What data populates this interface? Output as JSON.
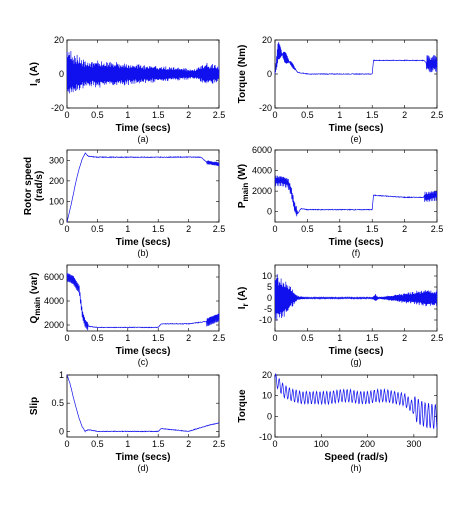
{
  "chart_data": [
    {
      "id": "a",
      "type": "line",
      "caption": "(a)",
      "ylabel": "I",
      "ylabel_sub": "a",
      "ylabel_unit": " (A)",
      "xlabel": "Time (secs)",
      "xlim": [
        0,
        2.5
      ],
      "ylim": [
        -20,
        20
      ],
      "xticks": [
        0,
        0.5,
        1,
        1.5,
        2,
        2.5
      ],
      "xtick_labels": [
        "0",
        "0.5",
        "1",
        "1.5",
        "2",
        "2.5"
      ],
      "yticks": [
        -20,
        0,
        20
      ],
      "ytick_labels": [
        "-20",
        "0",
        "20"
      ],
      "series": [
        {
          "x": [
            0,
            0.03,
            0.06,
            0.1,
            0.15,
            0.25,
            0.4,
            0.6,
            0.9,
            1.2,
            1.5,
            1.8,
            2.1,
            2.3,
            2.5
          ],
          "amplitude": [
            16,
            15,
            14,
            13,
            12,
            9,
            8,
            8,
            7,
            6,
            5,
            4,
            3,
            7,
            5
          ]
        }
      ]
    },
    {
      "id": "e",
      "type": "line",
      "caption": "(e)",
      "ylabel": "Torque (Nm)",
      "xlabel": "Time (secs)",
      "xlim": [
        0,
        2.5
      ],
      "ylim": [
        -20,
        20
      ],
      "xticks": [
        0,
        0.5,
        1,
        1.5,
        2,
        2.5
      ],
      "xtick_labels": [
        "0",
        "0.5",
        "1",
        "1.5",
        "2",
        "2.5"
      ],
      "yticks": [
        -20,
        0,
        20
      ],
      "ytick_labels": [
        "-20",
        "0",
        "20"
      ],
      "series": [
        {
          "x": [
            0,
            0.05,
            0.15,
            0.25,
            0.35,
            0.5,
            1.0,
            1.5,
            1.52,
            2.0,
            2.3,
            2.35,
            2.5
          ],
          "y": [
            0,
            14,
            10,
            6,
            1,
            0,
            0,
            0,
            8,
            8,
            8,
            6,
            6
          ]
        }
      ]
    },
    {
      "id": "b",
      "type": "line",
      "caption": "(b)",
      "ylabel": "Rotor speed",
      "ylabel_unit": "(rad/s)",
      "xlabel": "Time (secs)",
      "xlim": [
        0,
        2.5
      ],
      "ylim": [
        0,
        350
      ],
      "xticks": [
        0,
        0.5,
        1,
        1.5,
        2,
        2.5
      ],
      "xtick_labels": [
        "0",
        "0.5",
        "1",
        "1.5",
        "2",
        "2.5"
      ],
      "yticks": [
        0,
        100,
        200,
        300
      ],
      "ytick_labels": [
        "0",
        "100",
        "200",
        "300"
      ],
      "series": [
        {
          "x": [
            0,
            0.05,
            0.1,
            0.15,
            0.2,
            0.25,
            0.3,
            0.35,
            0.5,
            1.0,
            1.5,
            2.0,
            2.2,
            2.3,
            2.5
          ],
          "y": [
            0,
            60,
            130,
            200,
            260,
            305,
            335,
            320,
            315,
            315,
            315,
            316,
            315,
            290,
            280
          ]
        }
      ]
    },
    {
      "id": "f",
      "type": "line",
      "caption": "(f)",
      "ylabel": "P",
      "ylabel_sub": "main",
      "ylabel_unit": " (W)",
      "xlabel": "Time (secs)",
      "xlim": [
        0,
        2.5
      ],
      "ylim": [
        -1000,
        6000
      ],
      "xticks": [
        0,
        0.5,
        1,
        1.5,
        2,
        2.5
      ],
      "xtick_labels": [
        "0",
        "0.5",
        "1",
        "1.5",
        "2",
        "2.5"
      ],
      "yticks": [
        0,
        2000,
        4000,
        6000
      ],
      "ytick_labels": [
        "0",
        "2000",
        "4000",
        "6000"
      ],
      "series": [
        {
          "x": [
            0,
            0.1,
            0.2,
            0.25,
            0.3,
            0.35,
            0.4,
            0.5,
            1.0,
            1.5,
            1.52,
            2.0,
            2.3,
            2.5
          ],
          "y": [
            3000,
            3000,
            2800,
            2000,
            500,
            -200,
            300,
            200,
            200,
            200,
            1600,
            1400,
            1400,
            1600
          ]
        }
      ]
    },
    {
      "id": "c",
      "type": "line",
      "caption": "(c)",
      "ylabel": "Q",
      "ylabel_sub": "main",
      "ylabel_unit": " (var)",
      "xlabel": "Time (secs)",
      "xlim": [
        0,
        2.5
      ],
      "ylim": [
        1500,
        7000
      ],
      "xticks": [
        0,
        0.5,
        1,
        1.5,
        2,
        2.5
      ],
      "xtick_labels": [
        "0",
        "0.5",
        "1",
        "1.5",
        "2",
        "2.5"
      ],
      "yticks": [
        2000,
        4000,
        6000
      ],
      "ytick_labels": [
        "2000",
        "4000",
        "6000"
      ],
      "series": [
        {
          "x": [
            0,
            0.1,
            0.2,
            0.25,
            0.3,
            0.35,
            0.5,
            1.0,
            1.5,
            1.55,
            2.0,
            2.3,
            2.5
          ],
          "y": [
            6000,
            5800,
            5000,
            3000,
            2200,
            1900,
            1800,
            1800,
            1800,
            2100,
            2100,
            2300,
            2700
          ]
        }
      ]
    },
    {
      "id": "g",
      "type": "line",
      "caption": "(g)",
      "ylabel": "I",
      "ylabel_sub": "r",
      "ylabel_unit": " (A)",
      "xlabel": "Time (secs)",
      "xlim": [
        0,
        2.5
      ],
      "ylim": [
        -15,
        15
      ],
      "xticks": [
        0,
        0.5,
        1,
        1.5,
        2,
        2.5
      ],
      "xtick_labels": [
        "0",
        "0.5",
        "1",
        "1.5",
        "2",
        "2.5"
      ],
      "yticks": [
        -10,
        -5,
        0,
        5,
        10
      ],
      "ytick_labels": [
        "-10",
        "-5",
        "0",
        "5",
        "10"
      ],
      "series": [
        {
          "x": [
            0,
            0.05,
            0.15,
            0.25,
            0.35,
            0.5,
            1.5,
            1.55,
            1.6,
            2.3,
            2.5
          ],
          "amplitude": [
            12,
            11,
            9,
            5,
            1,
            0.3,
            0.3,
            2,
            0.3,
            4,
            4
          ]
        }
      ]
    },
    {
      "id": "d",
      "type": "line",
      "caption": "(d)",
      "ylabel": "Slip",
      "xlabel": "Time (secs)",
      "xlim": [
        0,
        2.5
      ],
      "ylim": [
        -0.1,
        1
      ],
      "xticks": [
        0,
        0.5,
        1,
        1.5,
        2,
        2.5
      ],
      "xtick_labels": [
        "0",
        "0.5",
        "1",
        "1.5",
        "2",
        "2.5"
      ],
      "yticks": [
        0,
        0.5,
        1
      ],
      "ytick_labels": [
        "0",
        "0.5",
        "1"
      ],
      "series": [
        {
          "x": [
            0,
            0.05,
            0.1,
            0.15,
            0.2,
            0.25,
            0.3,
            0.35,
            0.5,
            1.0,
            1.5,
            1.55,
            2.0,
            2.3,
            2.5
          ],
          "y": [
            1,
            0.85,
            0.62,
            0.42,
            0.23,
            0.08,
            0.0,
            0.03,
            0.0,
            0.0,
            0.0,
            0.05,
            0.0,
            0.1,
            0.15
          ]
        }
      ]
    },
    {
      "id": "h",
      "type": "line",
      "caption": "(h)",
      "ylabel": "Torque",
      "xlabel": "Speed (rad/s)",
      "xlim": [
        0,
        350
      ],
      "ylim": [
        -10,
        20
      ],
      "xticks": [
        0,
        100,
        200,
        300
      ],
      "xtick_labels": [
        "0",
        "100",
        "200",
        "300"
      ],
      "yticks": [
        -10,
        0,
        10,
        20
      ],
      "ytick_labels": [
        "-10",
        "0",
        "10",
        "20"
      ],
      "series": [
        {
          "x": [
            0,
            20,
            40,
            60,
            80,
            100,
            120,
            140,
            160,
            180,
            200,
            220,
            240,
            260,
            280,
            300,
            320,
            340
          ],
          "y": [
            18,
            12,
            10,
            9,
            9,
            9,
            9,
            10,
            10,
            9,
            9,
            10,
            10,
            9,
            8,
            4,
            1,
            0
          ]
        }
      ]
    }
  ]
}
